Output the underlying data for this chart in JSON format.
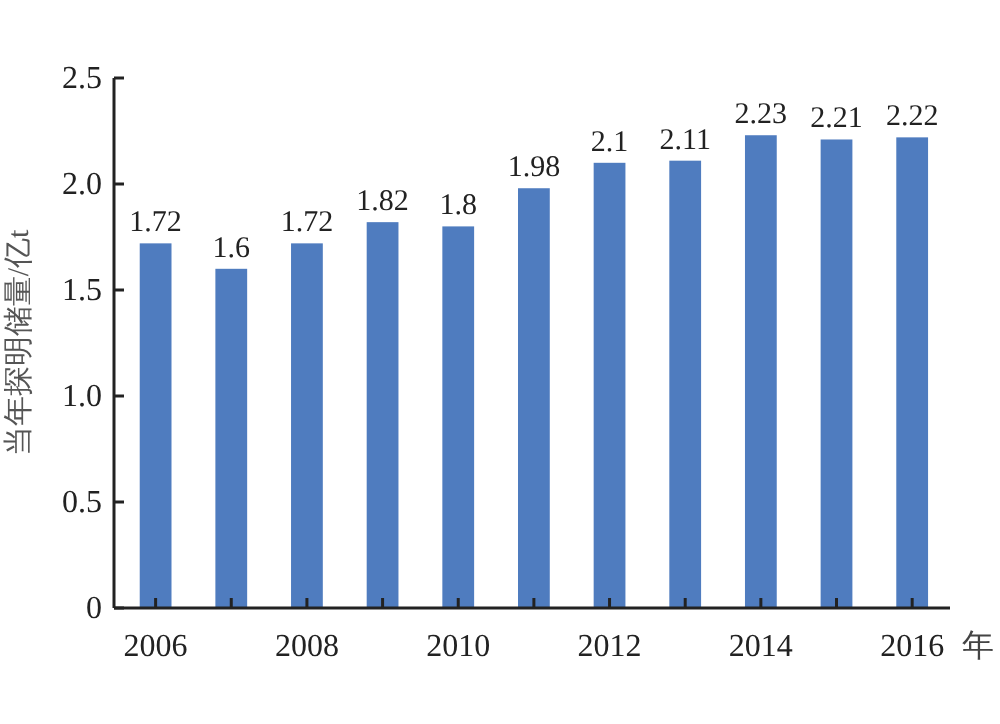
{
  "chart_data": {
    "type": "bar",
    "xlabel": "年",
    "ylabel": "当年探明储量/亿t",
    "categories": [
      "2006",
      null,
      "2008",
      null,
      "2010",
      null,
      "2012",
      null,
      "2014",
      null,
      "2016"
    ],
    "values": [
      1.72,
      1.6,
      1.72,
      1.82,
      1.8,
      1.98,
      2.1,
      2.11,
      2.23,
      2.21,
      2.22
    ],
    "color": "#4f7cbf",
    "data_labels": true,
    "grid": false,
    "ylim": [
      0,
      2.5
    ],
    "yticks": [
      0,
      0.5,
      {
        "value": 1,
        "label": "1.0"
      },
      1.5,
      {
        "value": 2,
        "label": "2.0"
      },
      2.5
    ]
  }
}
